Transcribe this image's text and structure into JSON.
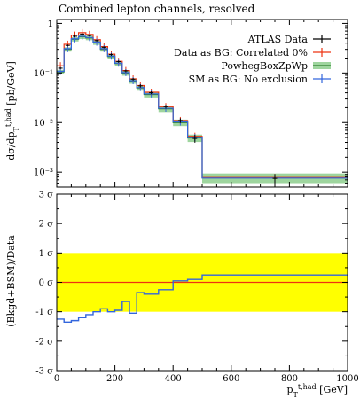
{
  "title": "Combined lepton channels, resolved",
  "chart_data": [
    {
      "type": "line",
      "panel": "main",
      "scale": "log",
      "ylabel": "dσ/dp_T^{t,had} [pb/GeV]",
      "xlim": [
        0,
        1000
      ],
      "ylim": [
        0.0005,
        1.2
      ],
      "yticks": [
        {
          "value": 1,
          "label": "1"
        },
        {
          "value": 0.1,
          "label": "10⁻¹"
        },
        {
          "value": 0.01,
          "label": "10⁻²"
        },
        {
          "value": 0.001,
          "label": "10⁻³"
        }
      ],
      "bin_edges": [
        0,
        25,
        50,
        75,
        100,
        125,
        150,
        175,
        200,
        225,
        250,
        275,
        300,
        350,
        400,
        450,
        500,
        1000
      ],
      "legend_position": "top-right",
      "series": [
        {
          "name": "ATLAS Data",
          "kind": "points",
          "color": "#000000",
          "values": [
            0.125,
            0.36,
            0.55,
            0.61,
            0.57,
            0.45,
            0.33,
            0.235,
            0.17,
            0.11,
            0.075,
            0.055,
            0.04,
            0.021,
            0.011,
            0.0048,
            0.00075
          ],
          "errors_rel": [
            0.05,
            0.04,
            0.04,
            0.04,
            0.04,
            0.04,
            0.04,
            0.05,
            0.05,
            0.06,
            0.06,
            0.07,
            0.07,
            0.09,
            0.11,
            0.18,
            0.22
          ]
        },
        {
          "name": "Data as BG: Correlated 0%",
          "kind": "step",
          "color": "#ee3311",
          "values": [
            0.14,
            0.38,
            0.58,
            0.65,
            0.6,
            0.47,
            0.34,
            0.24,
            0.172,
            0.112,
            0.076,
            0.056,
            0.041,
            0.021,
            0.011,
            0.0053,
            0.00078
          ]
        },
        {
          "name": "PowhegBoxZpWp",
          "kind": "band",
          "color": "#2f7f2f",
          "band_color": "#9ed59e",
          "values": [
            0.105,
            0.3,
            0.48,
            0.54,
            0.51,
            0.41,
            0.3,
            0.215,
            0.155,
            0.1,
            0.069,
            0.05,
            0.037,
            0.019,
            0.01,
            0.0049,
            0.00077
          ],
          "band_rel": [
            0.1,
            0.1,
            0.1,
            0.1,
            0.1,
            0.1,
            0.1,
            0.11,
            0.11,
            0.12,
            0.12,
            0.12,
            0.13,
            0.14,
            0.15,
            0.17,
            0.22
          ]
        },
        {
          "name": "SM as BG: No exclusion",
          "kind": "step",
          "color": "#3366dd",
          "values": [
            0.108,
            0.31,
            0.49,
            0.55,
            0.52,
            0.42,
            0.31,
            0.22,
            0.158,
            0.102,
            0.07,
            0.051,
            0.038,
            0.0195,
            0.0103,
            0.005,
            0.00076
          ]
        }
      ]
    },
    {
      "type": "line",
      "panel": "ratio",
      "ylabel": "(Bkgd+BSM)/Data",
      "xlabel": "p_T^{t,had} [GeV]",
      "xlim": [
        0,
        1000
      ],
      "ylim": [
        -3,
        3
      ],
      "xticks": [
        0,
        200,
        400,
        600,
        800,
        1000
      ],
      "yticks": [
        {
          "value": 3,
          "label": "3 σ"
        },
        {
          "value": 2,
          "label": "2 σ"
        },
        {
          "value": 1,
          "label": "1 σ"
        },
        {
          "value": 0,
          "label": "0 σ"
        },
        {
          "value": -1,
          "label": "-1 σ"
        },
        {
          "value": -2,
          "label": "-2 σ"
        },
        {
          "value": -3,
          "label": "-3 σ"
        }
      ],
      "band": {
        "range": [
          -1,
          1
        ],
        "color": "#ffff00"
      },
      "reference_line": {
        "value": 0,
        "color": "#ee3311"
      },
      "bin_edges": [
        0,
        25,
        50,
        75,
        100,
        125,
        150,
        175,
        200,
        225,
        250,
        275,
        300,
        350,
        400,
        450,
        500,
        1000
      ],
      "series": [
        {
          "name": "SM as BG: No exclusion",
          "color": "#3366dd",
          "values": [
            -1.25,
            -1.35,
            -1.3,
            -1.2,
            -1.1,
            -1.0,
            -0.9,
            -1.0,
            -0.95,
            -0.65,
            -1.05,
            -0.35,
            -0.4,
            -0.25,
            0.05,
            0.1,
            0.25
          ]
        }
      ]
    }
  ]
}
